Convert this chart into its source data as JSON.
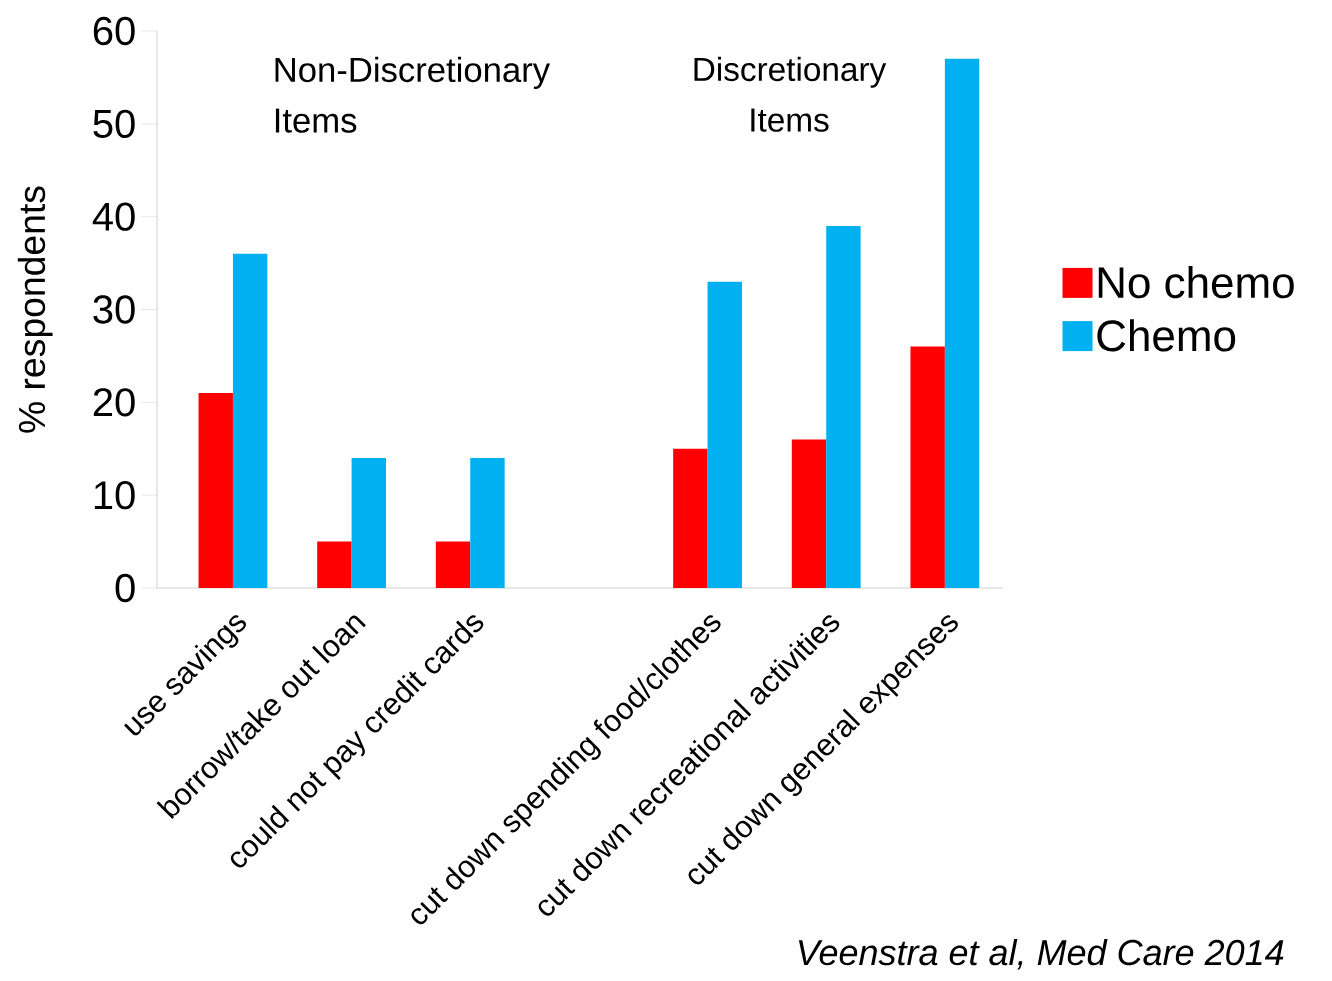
{
  "chart_data": {
    "type": "bar",
    "ylabel": "% respondents",
    "categories": [
      "use savings",
      "borrow/take out loan",
      "could not pay credit cards",
      null,
      "cut down spending food/clothes",
      "cut down recreational activities",
      "cut down general expenses"
    ],
    "series": [
      {
        "name": "No chemo",
        "color": "#ff0000",
        "values": [
          21,
          5,
          5,
          null,
          15,
          16,
          26
        ]
      },
      {
        "name": "Chemo",
        "color": "#00b0f0",
        "values": [
          36,
          14,
          14,
          null,
          33,
          39,
          57
        ]
      }
    ],
    "ylim": [
      0,
      60
    ],
    "yticks": [
      0,
      10,
      20,
      30,
      40,
      50,
      60
    ],
    "legend": "right",
    "annotations": [
      "Non-Discretionary Items",
      "Discretionary Items",
      "Veenstra et al, Med Care 2014"
    ]
  }
}
